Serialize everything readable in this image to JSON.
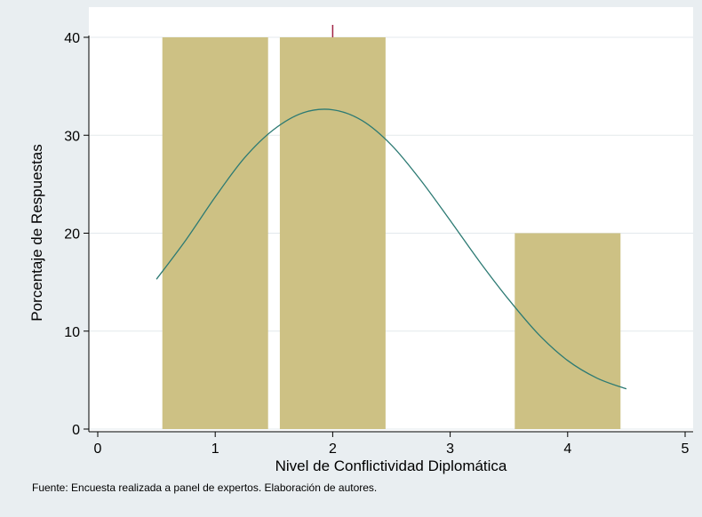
{
  "chart_data": {
    "type": "bar",
    "categories": [
      "1",
      "2",
      "4"
    ],
    "x": [
      1,
      2,
      4
    ],
    "values": [
      40,
      40,
      20
    ],
    "curve": {
      "x": [
        0.5,
        0.75,
        1.0,
        1.25,
        1.5,
        1.75,
        2.0,
        2.25,
        2.5,
        2.75,
        3.0,
        3.25,
        3.5,
        3.75,
        4.0,
        4.25,
        4.5
      ],
      "y": [
        15.3,
        19.3,
        23.7,
        27.7,
        30.6,
        32.3,
        32.6,
        31.5,
        29.0,
        25.4,
        21.3,
        17.1,
        13.2,
        9.7,
        7.0,
        5.2,
        4.1
      ]
    },
    "xlabel": "Nivel de Conflictividad Diplomática",
    "ylabel": "Porcentaje de Respuestas",
    "xlim": [
      0,
      5
    ],
    "ylim": [
      0,
      40
    ],
    "xticks": [
      "0",
      "1",
      "2",
      "3",
      "4",
      "5"
    ],
    "yticks": [
      "0",
      "10",
      "20",
      "30",
      "40"
    ],
    "grid": "horizontal",
    "legend": "none"
  },
  "colors": {
    "bar": "#cdc184",
    "curve": "#2c7a73",
    "plot_bg": "#ffffff",
    "grid": "#e3e9ec",
    "outer_bg": "#e9eef1",
    "marker": "#a12444"
  },
  "footnote": "Fuente: Encuesta realizada a panel de expertos. Elaboración de autores."
}
